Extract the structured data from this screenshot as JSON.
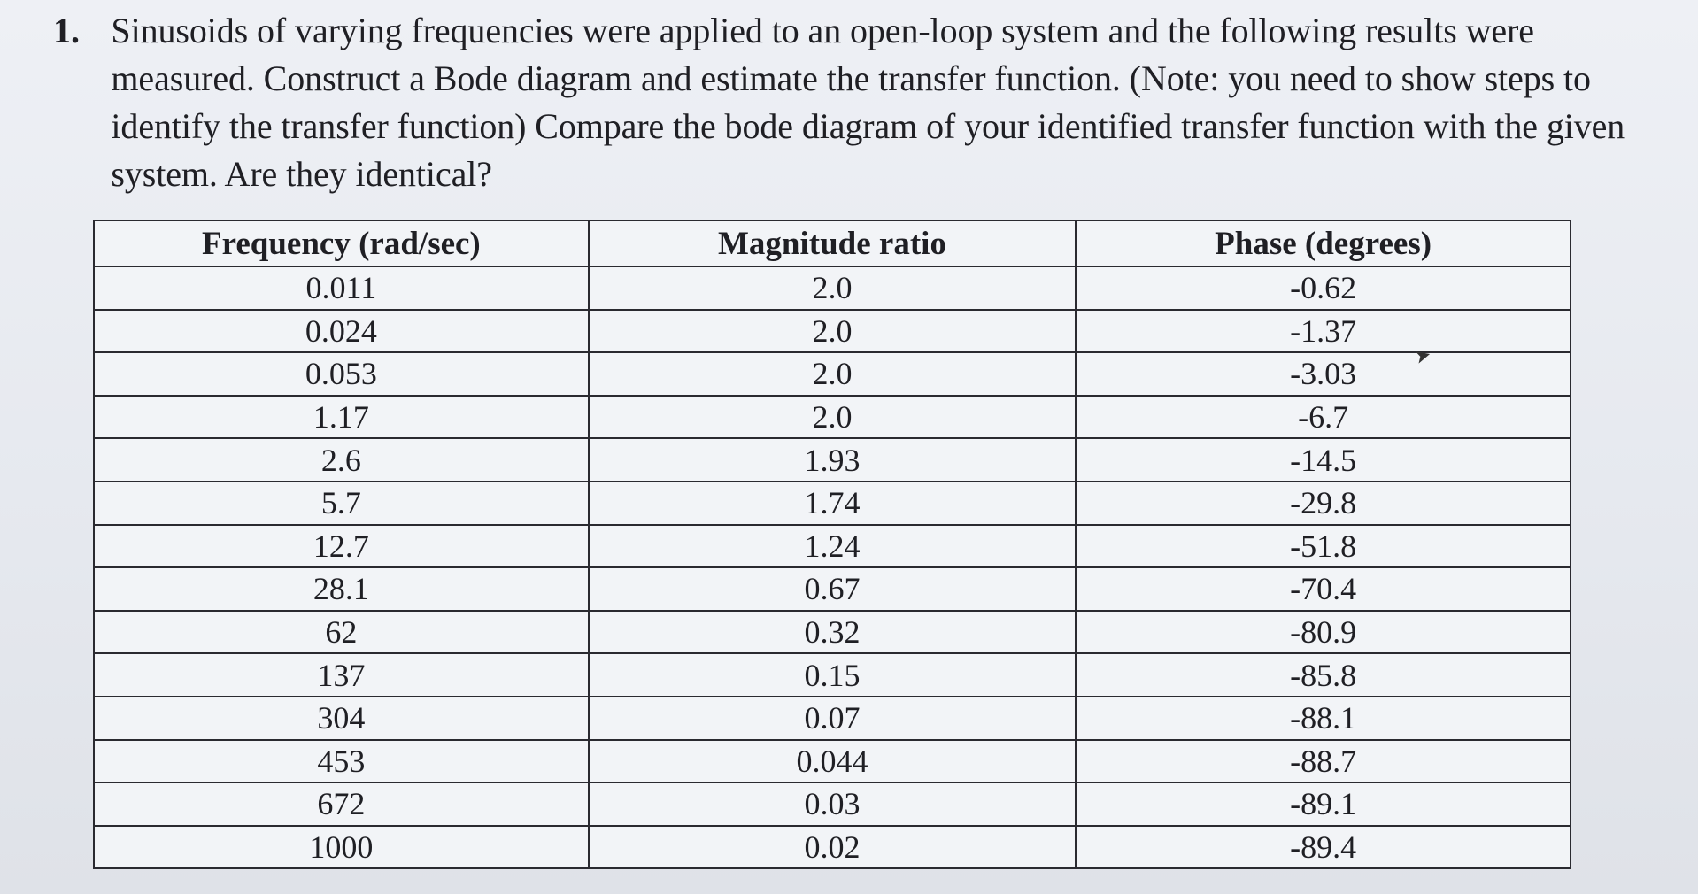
{
  "question": {
    "number": "1.",
    "text": "Sinusoids of varying frequencies were applied to an open-loop system and the following results were measured. Construct a Bode diagram and estimate the transfer function. (Note: you need to show steps to identify the transfer function) Compare the bode diagram of your identified transfer function with the given system. Are they identical?"
  },
  "table": {
    "headers": [
      "Frequency (rad/sec)",
      "Magnitude ratio",
      "Phase (degrees)"
    ],
    "rows": [
      [
        "0.011",
        "2.0",
        "-0.62"
      ],
      [
        "0.024",
        "2.0",
        "-1.37"
      ],
      [
        "0.053",
        "2.0",
        "-3.03"
      ],
      [
        "1.17",
        "2.0",
        "-6.7"
      ],
      [
        "2.6",
        "1.93",
        "-14.5"
      ],
      [
        "5.7",
        "1.74",
        "-29.8"
      ],
      [
        "12.7",
        "1.24",
        "-51.8"
      ],
      [
        "28.1",
        "0.67",
        "-70.4"
      ],
      [
        "62",
        "0.32",
        "-80.9"
      ],
      [
        "137",
        "0.15",
        "-85.8"
      ],
      [
        "304",
        "0.07",
        "-88.1"
      ],
      [
        "453",
        "0.044",
        "-88.7"
      ],
      [
        "672",
        "0.03",
        "-89.1"
      ],
      [
        "1000",
        "0.02",
        "-89.4"
      ]
    ]
  }
}
